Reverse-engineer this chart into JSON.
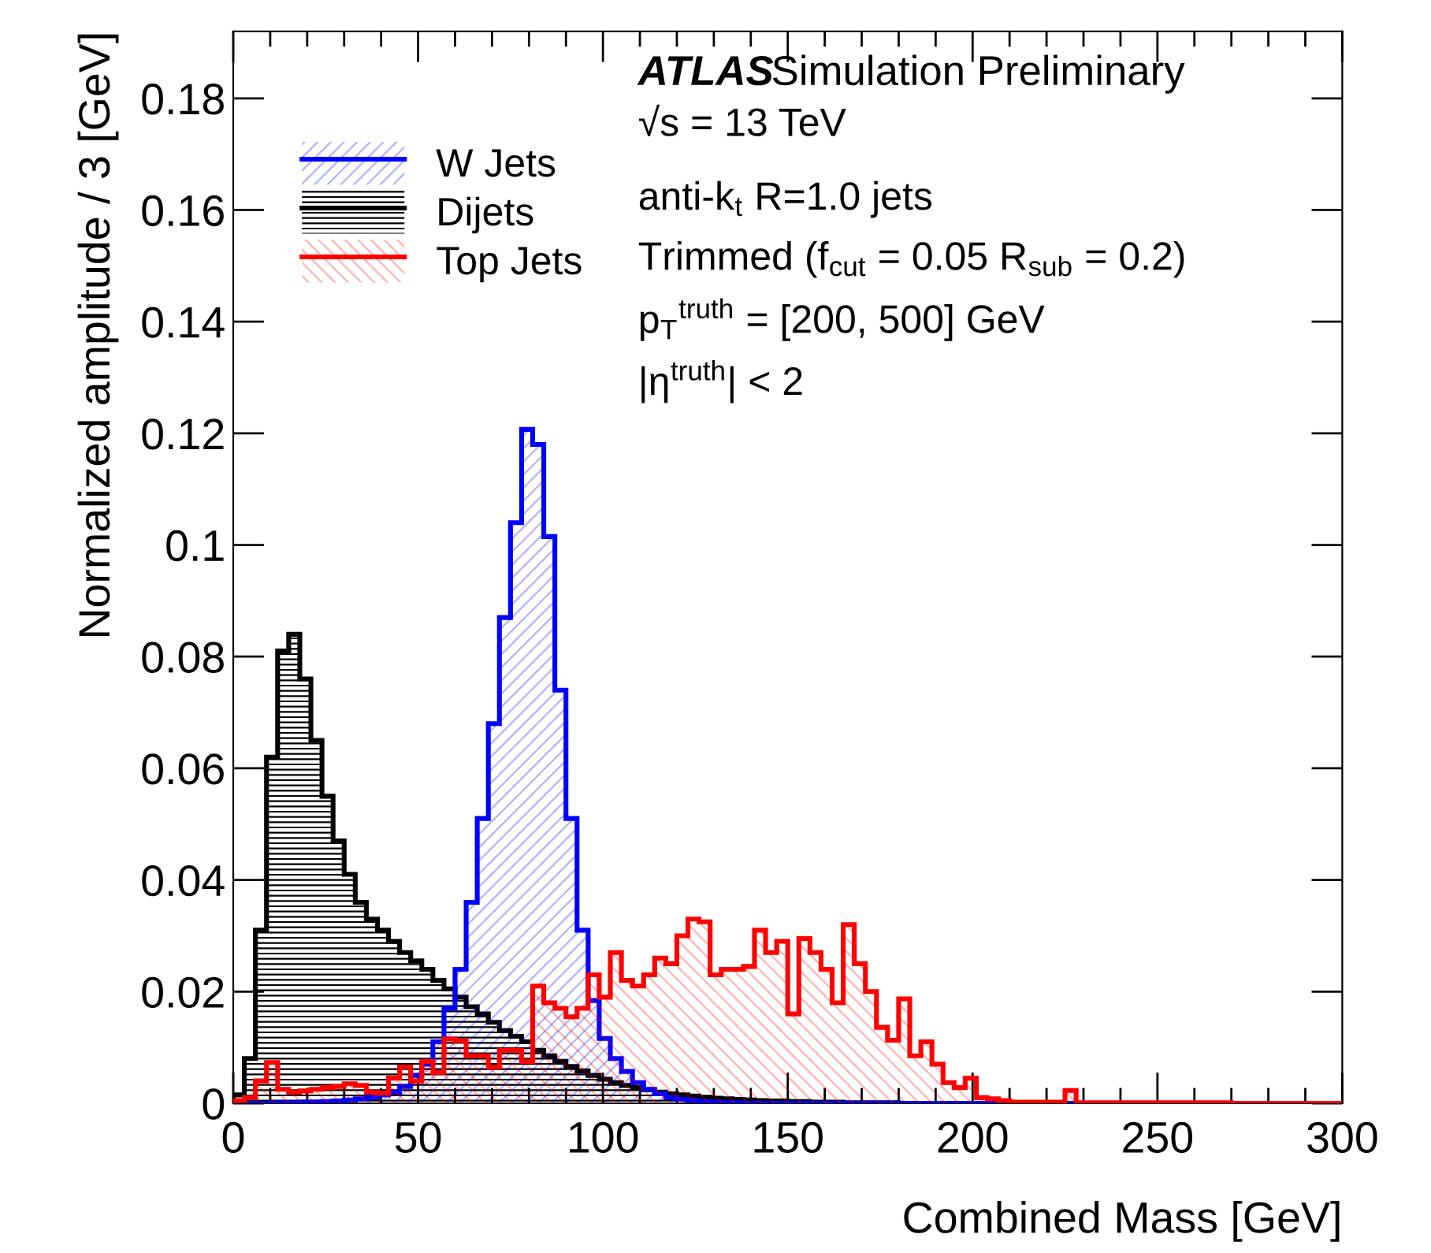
{
  "chart_data": {
    "type": "histogram",
    "xlabel": "Combined Mass [GeV]",
    "ylabel": "Normalized amplitude / 3 [GeV]",
    "bins": [
      0,
      3,
      6,
      9,
      12,
      15,
      18,
      21,
      24,
      27,
      30,
      33,
      36,
      39,
      42,
      45,
      48,
      51,
      54,
      57,
      60,
      63,
      66,
      69,
      72,
      75,
      78,
      81,
      84,
      87,
      90,
      93,
      96,
      99,
      102,
      105,
      108,
      111,
      114,
      117,
      120,
      123,
      126,
      129,
      132,
      135,
      138,
      141,
      144,
      147,
      150,
      153,
      156,
      159,
      162,
      165,
      168,
      171,
      174,
      177,
      180,
      183,
      186,
      189,
      192,
      195,
      198,
      201,
      204,
      207,
      210,
      213,
      216,
      219,
      222,
      225,
      228,
      231,
      234,
      237,
      240,
      243,
      246,
      249,
      252,
      255,
      258,
      261,
      264,
      267,
      270,
      273,
      276,
      279,
      282,
      285,
      288,
      291,
      294,
      297,
      300
    ],
    "series": [
      {
        "name": "W Jets",
        "color": "#0000ff",
        "values": [
          0,
          0,
          0,
          0,
          0.0001,
          0.0001,
          0.0002,
          0.0002,
          0.0003,
          0.0004,
          0.0006,
          0.0008,
          0.001,
          0.0015,
          0.002,
          0.003,
          0.005,
          0.007,
          0.011,
          0.017,
          0.024,
          0.036,
          0.051,
          0.068,
          0.087,
          0.104,
          0.1207,
          0.118,
          0.1015,
          0.074,
          0.051,
          0.031,
          0.0184,
          0.0116,
          0.008,
          0.0057,
          0.0037,
          0.0025,
          0.0017,
          0.001,
          0.0007,
          0.0005,
          0.0003,
          0.0002,
          0.0001,
          0.0001,
          0,
          0,
          0,
          0,
          0,
          0,
          0,
          0,
          0,
          0,
          0,
          0,
          0,
          0,
          0,
          0,
          0,
          0,
          0,
          0,
          0,
          0,
          0,
          0,
          0,
          0,
          0,
          0,
          0,
          0,
          0,
          0,
          0,
          0,
          0,
          0,
          0,
          0,
          0,
          0,
          0,
          0,
          0,
          0,
          0,
          0,
          0,
          0,
          0,
          0,
          0,
          0,
          0,
          0
        ]
      },
      {
        "name": "Dijets",
        "color": "#000000",
        "values": [
          0.0015,
          0.008,
          0.031,
          0.062,
          0.081,
          0.084,
          0.076,
          0.065,
          0.055,
          0.047,
          0.041,
          0.036,
          0.033,
          0.031,
          0.029,
          0.027,
          0.0255,
          0.024,
          0.022,
          0.0205,
          0.019,
          0.0173,
          0.016,
          0.0145,
          0.013,
          0.012,
          0.011,
          0.0095,
          0.0085,
          0.0075,
          0.0066,
          0.0058,
          0.005,
          0.0043,
          0.0037,
          0.0032,
          0.0028,
          0.0024,
          0.002,
          0.0017,
          0.0015,
          0.0013,
          0.0011,
          0.0009,
          0.0008,
          0.0007,
          0.0006,
          0.0005,
          0.0004,
          0.0004,
          0.0003,
          0.0003,
          0.0002,
          0.0002,
          0.0002,
          0.0001,
          0.0001,
          0.0001,
          0.0001,
          0.0001,
          0,
          0,
          0,
          0,
          0,
          0,
          0,
          0,
          0,
          0,
          0,
          0,
          0,
          0,
          0,
          0,
          0,
          0,
          0,
          0,
          0,
          0,
          0,
          0,
          0,
          0,
          0,
          0,
          0,
          0,
          0,
          0,
          0,
          0,
          0,
          0,
          0,
          0,
          0,
          0
        ]
      },
      {
        "name": "Top Jets",
        "color": "#ff0000",
        "values": [
          0.0005,
          0.001,
          0.004,
          0.0073,
          0.0025,
          0.002,
          0.0022,
          0.0025,
          0.0028,
          0.003,
          0.0035,
          0.0032,
          0.002,
          0.0018,
          0.0045,
          0.0065,
          0.004,
          0.0075,
          0.0055,
          0.0115,
          0.0112,
          0.0085,
          0.0085,
          0.0065,
          0.0095,
          0.0095,
          0.0075,
          0.021,
          0.018,
          0.017,
          0.0155,
          0.017,
          0.023,
          0.019,
          0.027,
          0.022,
          0.021,
          0.023,
          0.026,
          0.025,
          0.03,
          0.033,
          0.0325,
          0.023,
          0.024,
          0.024,
          0.0245,
          0.031,
          0.027,
          0.029,
          0.016,
          0.0295,
          0.027,
          0.024,
          0.018,
          0.032,
          0.025,
          0.02,
          0.0136,
          0.0113,
          0.0187,
          0.0085,
          0.011,
          0.007,
          0.0037,
          0.0028,
          0.0045,
          0.001,
          0.0008,
          0.0005,
          0.0002,
          0.0002,
          0.0002,
          0.0002,
          0.0002,
          0.0023,
          0.0001,
          0.0001,
          0.0001,
          0.0001,
          0.0001,
          0.0001,
          0.0001,
          0.0001,
          0.0001,
          0.0001,
          0.0001,
          0.0001,
          0.0001,
          0.0001,
          0,
          0,
          0,
          0,
          0,
          0,
          0,
          0,
          0,
          0
        ]
      }
    ],
    "xlim": [
      0,
      300
    ],
    "xticks": [
      0,
      50,
      100,
      150,
      200,
      250,
      300
    ],
    "ylim": [
      0,
      0.192
    ],
    "yticks": [
      0,
      0.02,
      0.04,
      0.06,
      0.08,
      0.1,
      0.12,
      0.14,
      0.16,
      0.18
    ],
    "legend": "top left",
    "grid": false,
    "annotations": [
      "ATLAS",
      "Simulation Preliminary",
      "√s = 13 TeV",
      "anti-k$_{t}$ R=1.0 jets",
      "Trimmed (f$_{cut}$ = 0.05 R$_{sub}$ = 0.2)",
      "p$_{T}$$^{truth}$ = [200, 500] GeV",
      "|η$^{truth}$| < 2"
    ]
  }
}
